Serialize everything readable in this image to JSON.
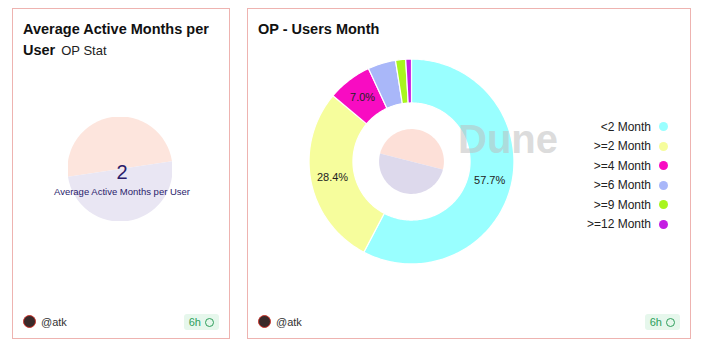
{
  "chart_data": [
    {
      "type": "counter",
      "title": "Average Active Months per User",
      "subtitle": "OP Stat",
      "value": 2,
      "label": "Average Active Months per User",
      "footer": [
        "@atk",
        "6h"
      ]
    },
    {
      "type": "pie",
      "title": "OP - Users Month",
      "categories": [
        "<2 Month",
        ">=2 Month",
        ">=4 Month",
        ">=6 Month",
        ">=9 Month",
        ">=12 Month"
      ],
      "values": [
        57.7,
        28.4,
        7.0,
        4.4,
        1.6,
        0.9
      ],
      "value_labels": [
        "57.7%",
        "28.4%",
        "7.0%",
        null,
        null,
        null
      ],
      "colors": [
        "#99ffff",
        "#f6fd9c",
        "#f80cc2",
        "#a9b7f9",
        "#a8f51e",
        "#c41fe2"
      ],
      "data_labels": true,
      "legend": "right",
      "watermark": "Dune",
      "footer": [
        "@atk",
        "6h"
      ]
    }
  ]
}
